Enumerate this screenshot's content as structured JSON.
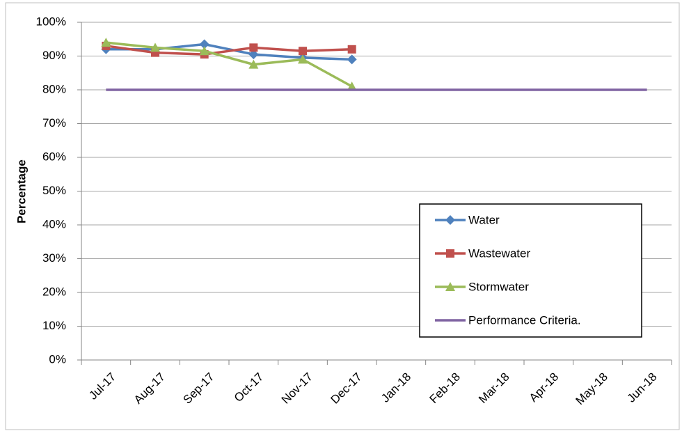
{
  "chart_data": {
    "type": "line",
    "y_label": "Percentage",
    "categories": [
      "Jul-17",
      "Aug-17",
      "Sep-17",
      "Oct-17",
      "Nov-17",
      "Dec-17",
      "Jan-18",
      "Feb-18",
      "Mar-18",
      "Apr-18",
      "May-18",
      "Jun-18"
    ],
    "series": [
      {
        "name": "Water",
        "color": "#4f81bd",
        "marker": "diamond",
        "values": [
          92,
          92,
          93.5,
          90.5,
          89.5,
          89,
          null,
          null,
          null,
          null,
          null,
          null
        ]
      },
      {
        "name": "Wastewater",
        "color": "#c0504d",
        "marker": "square",
        "values": [
          93,
          91,
          90.5,
          92.5,
          91.5,
          92,
          null,
          null,
          null,
          null,
          null,
          null
        ]
      },
      {
        "name": "Stormwater",
        "color": "#9bbb59",
        "marker": "triangle",
        "values": [
          94,
          92.5,
          91.5,
          87.5,
          89,
          81,
          null,
          null,
          null,
          null,
          null,
          null
        ]
      },
      {
        "name": "Performance Criteria.",
        "color": "#8064a2",
        "marker": "none",
        "values": [
          80,
          80,
          80,
          80,
          80,
          80,
          80,
          80,
          80,
          80,
          80,
          80
        ]
      }
    ],
    "ylim": [
      0,
      100
    ],
    "yticks": [
      {
        "value": 0,
        "label": "0%"
      },
      {
        "value": 10,
        "label": "10%"
      },
      {
        "value": 20,
        "label": "20%"
      },
      {
        "value": 30,
        "label": "30%"
      },
      {
        "value": 40,
        "label": "40%"
      },
      {
        "value": 50,
        "label": "50%"
      },
      {
        "value": 60,
        "label": "60%"
      },
      {
        "value": 70,
        "label": "70%"
      },
      {
        "value": 80,
        "label": "80%"
      },
      {
        "value": 90,
        "label": "90%"
      },
      {
        "value": 100,
        "label": "100%"
      }
    ],
    "grid": true,
    "legend": "right"
  }
}
